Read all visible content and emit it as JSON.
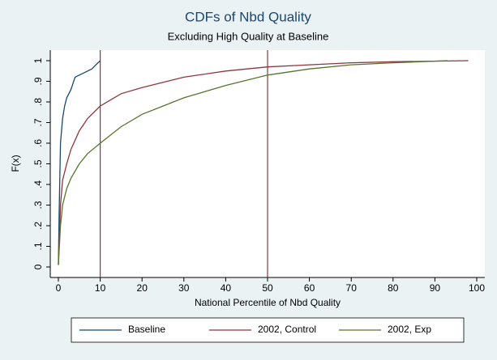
{
  "chart_data": {
    "type": "line",
    "title": "CDFs of Nbd Quality",
    "subtitle": "Excluding High Quality at Baseline",
    "x_label": "National Percentile of Nbd Quality",
    "y_label": "F(x)",
    "xlim": [
      0,
      100
    ],
    "xticks": [
      0,
      10,
      20,
      30,
      40,
      50,
      60,
      70,
      80,
      90,
      100
    ],
    "ylim": [
      0,
      1
    ],
    "yticks": [
      0,
      {
        "value": 0.1,
        "label": ".1"
      },
      {
        "value": 0.2,
        "label": ".2"
      },
      {
        "value": 0.3,
        "label": ".3"
      },
      {
        "value": 0.4,
        "label": ".4"
      },
      {
        "value": 0.5,
        "label": ".5"
      },
      {
        "value": 0.6,
        "label": ".6"
      },
      {
        "value": 0.7,
        "label": ".7"
      },
      {
        "value": 0.8,
        "label": ".8"
      },
      {
        "value": 0.9,
        "label": ".9"
      },
      1
    ],
    "grid": false,
    "xlines": [
      10,
      50
    ],
    "xline_color": "#90353b",
    "legend": "bottom",
    "series": [
      {
        "name": "Baseline",
        "color": "#1a476f",
        "x": [
          0,
          0.2,
          0.5,
          1,
          1.5,
          2,
          3,
          4,
          5,
          6,
          8,
          9,
          10
        ],
        "values": [
          0.01,
          0.27,
          0.6,
          0.72,
          0.78,
          0.82,
          0.86,
          0.92,
          0.93,
          0.94,
          0.96,
          0.98,
          1
        ]
      },
      {
        "name": "2002, Control",
        "color": "#90353b",
        "x": [
          0,
          0.5,
          1,
          2,
          3,
          5,
          7,
          10,
          15,
          20,
          30,
          40,
          50,
          60,
          70,
          80,
          98
        ],
        "values": [
          0.01,
          0.3,
          0.42,
          0.5,
          0.57,
          0.66,
          0.72,
          0.78,
          0.84,
          0.87,
          0.92,
          0.95,
          0.97,
          0.98,
          0.99,
          0.995,
          1
        ]
      },
      {
        "name": "2002, Exp",
        "color": "#55752f",
        "x": [
          0,
          0.5,
          1,
          2,
          3,
          5,
          7,
          10,
          15,
          20,
          25,
          30,
          40,
          50,
          60,
          70,
          80,
          93
        ],
        "values": [
          0.01,
          0.2,
          0.3,
          0.38,
          0.43,
          0.5,
          0.55,
          0.6,
          0.68,
          0.74,
          0.78,
          0.82,
          0.88,
          0.93,
          0.96,
          0.98,
          0.99,
          1
        ]
      }
    ]
  }
}
